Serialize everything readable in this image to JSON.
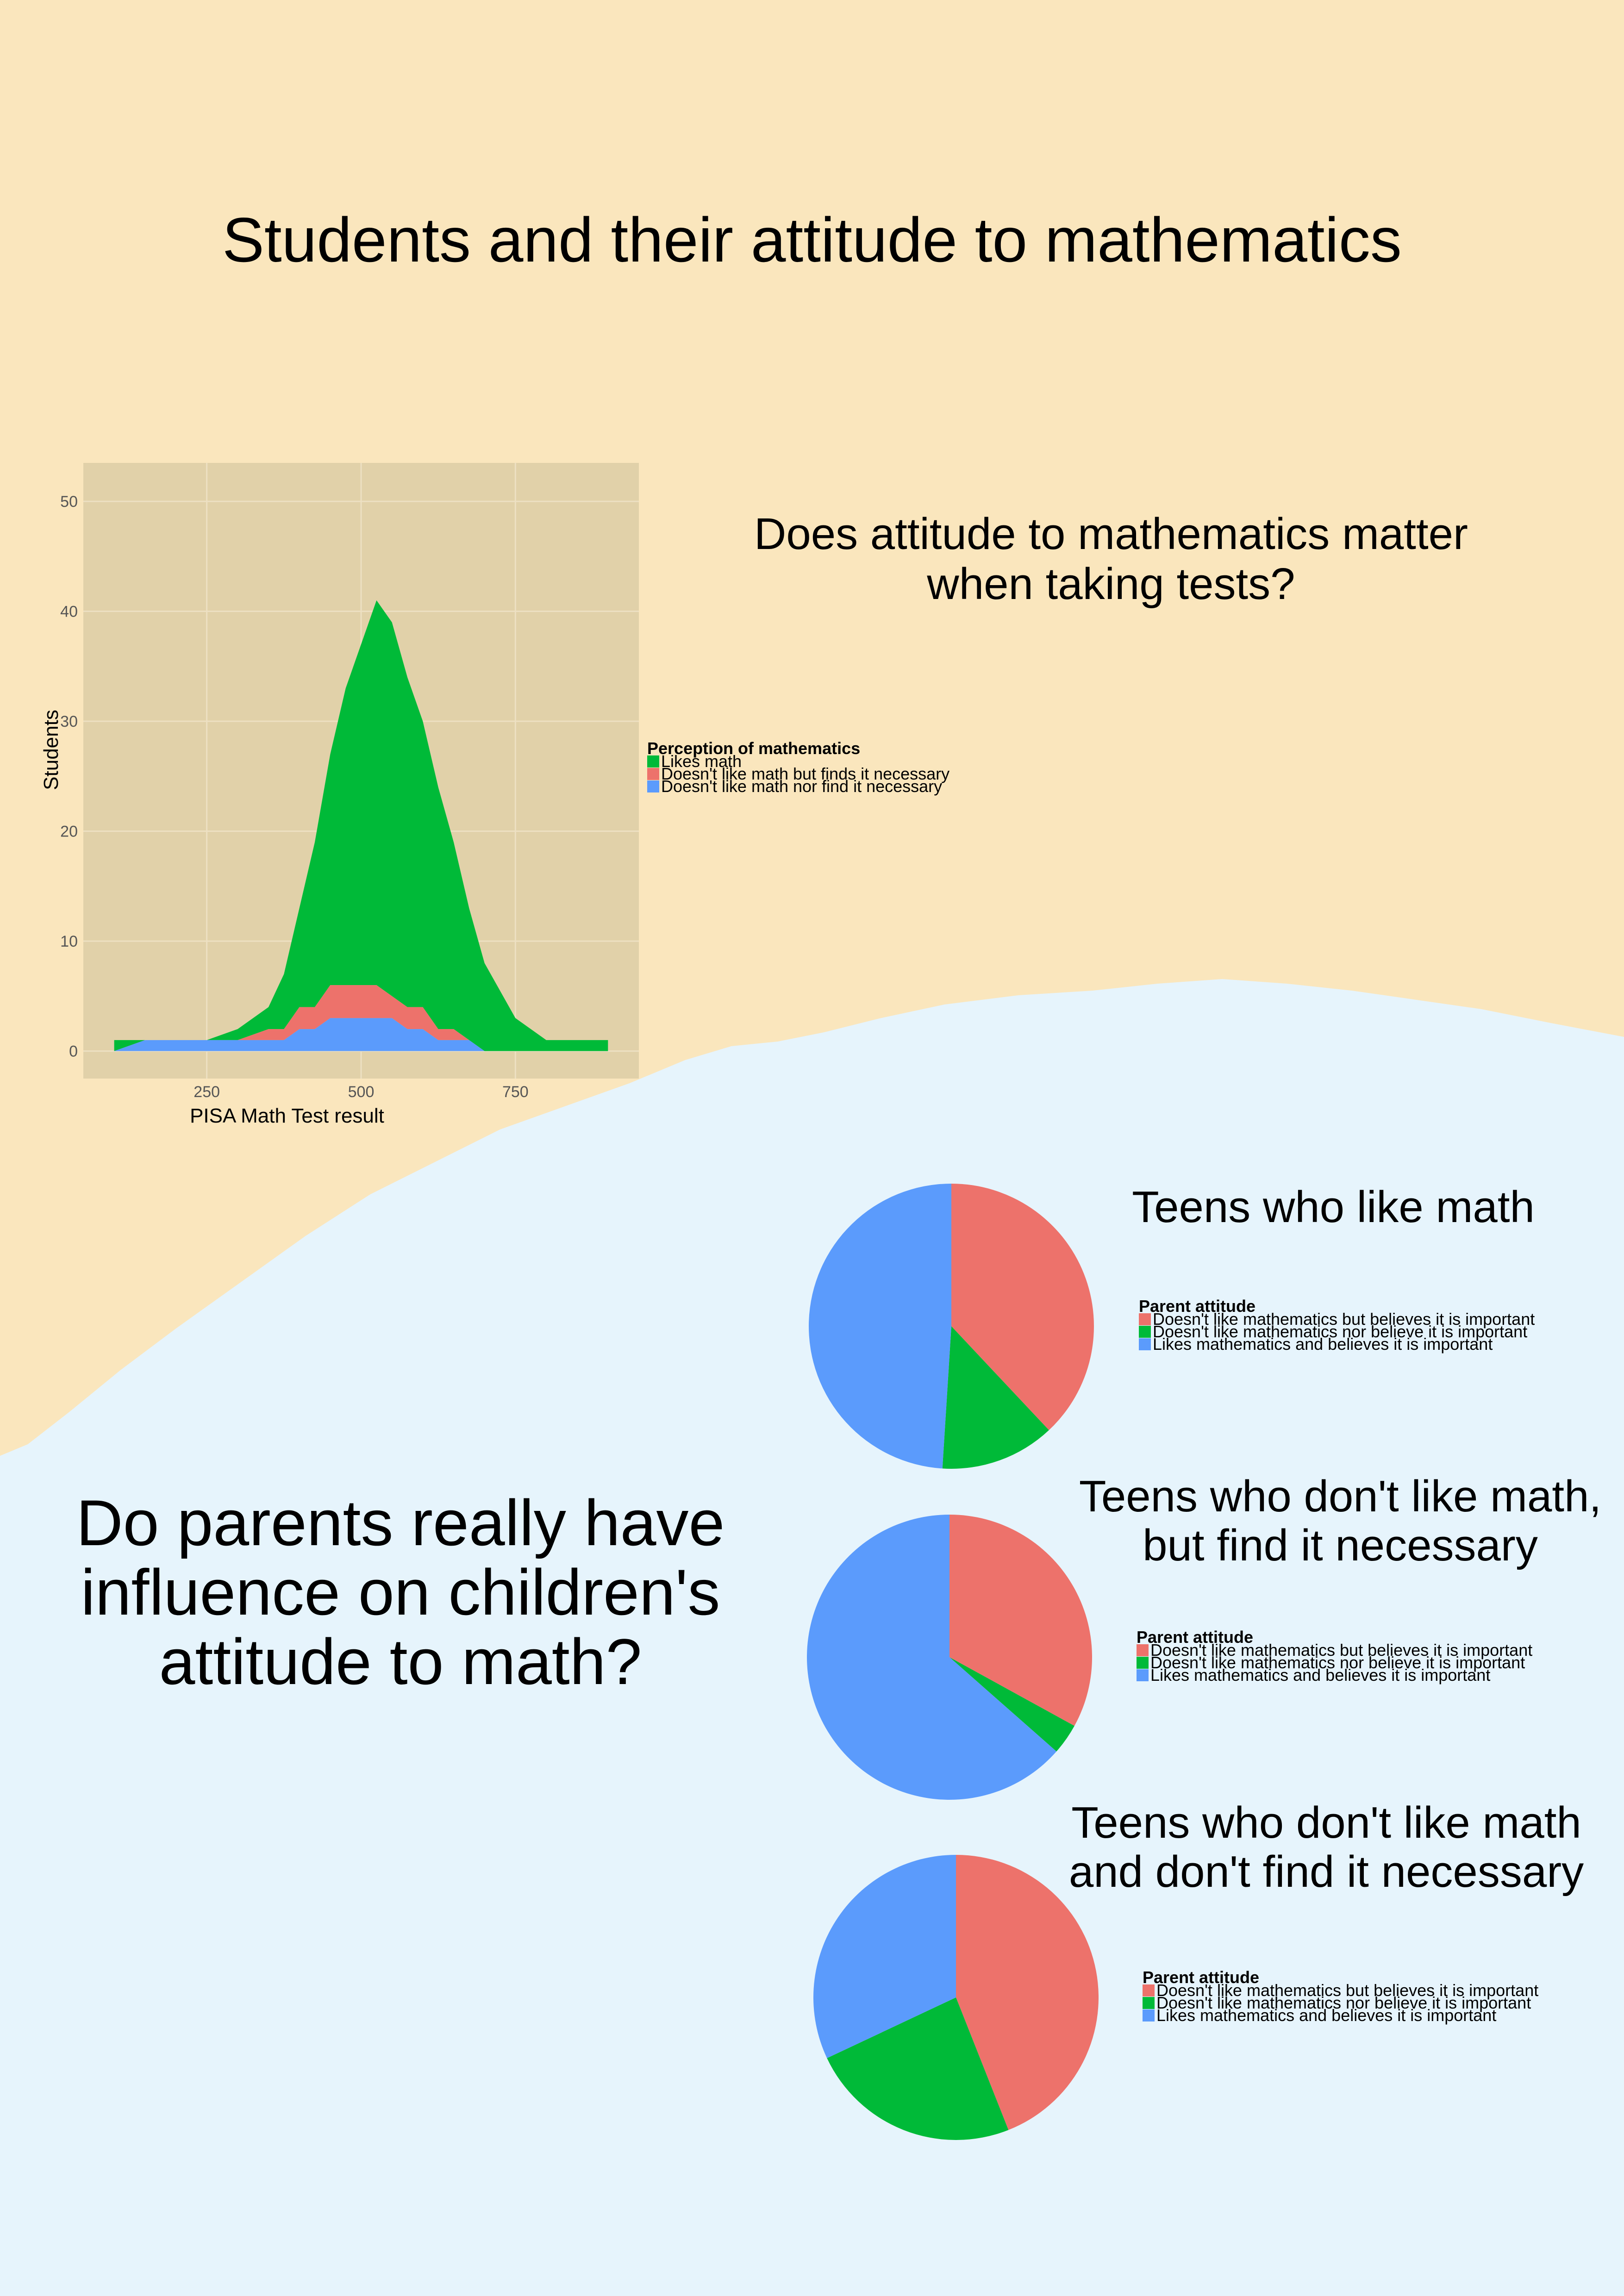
{
  "page": {
    "title": "Students and their attitude to mathematics",
    "question_tests": "Does attitude to mathematics matter\nwhen taking tests?",
    "question_parents": "Do parents really have\ninfluence on children's\nattitude to math?"
  },
  "colors": {
    "background_top": "#fae6bd",
    "background_bottom": "#e6f4fc",
    "panel": "#e1d1a9",
    "red": "#ed726b",
    "green": "#00ba38",
    "blue": "#5b9bfc"
  },
  "chart_data": [
    {
      "type": "area",
      "stacked": true,
      "title": "",
      "xlabel": "PISA Math Test result",
      "ylabel": "Students",
      "xlim": [
        50,
        950
      ],
      "ylim": [
        -2.5,
        53.5
      ],
      "x_ticks": [
        250,
        500,
        750
      ],
      "y_ticks": [
        0,
        10,
        20,
        30,
        40,
        50
      ],
      "grid": true,
      "legend_title": "Perception of mathematics",
      "legend_position": "right",
      "x": [
        100,
        150,
        200,
        250,
        300,
        350,
        375,
        400,
        425,
        450,
        475,
        500,
        525,
        550,
        575,
        600,
        625,
        650,
        675,
        700,
        750,
        800,
        850,
        900
      ],
      "series": [
        {
          "name": "Likes math",
          "color": "#00ba38",
          "values": [
            1,
            0,
            0,
            0,
            1,
            2,
            5,
            9,
            15,
            21,
            27,
            31,
            35,
            34,
            30,
            26,
            22,
            17,
            12,
            8,
            3,
            1,
            1,
            1
          ]
        },
        {
          "name": "Doesn't like math but finds it necessary",
          "color": "#ed726b",
          "values": [
            0,
            0,
            0,
            0,
            0,
            1,
            1,
            2,
            2,
            3,
            3,
            3,
            3,
            2,
            2,
            2,
            1,
            1,
            0,
            0,
            0,
            0,
            0,
            0
          ]
        },
        {
          "name": "Doesn't like math nor find it necessary",
          "color": "#5b9bfc",
          "values": [
            0,
            1,
            1,
            1,
            1,
            1,
            1,
            2,
            2,
            3,
            3,
            3,
            3,
            3,
            2,
            2,
            1,
            1,
            1,
            0,
            0,
            0,
            0,
            0
          ]
        }
      ]
    },
    {
      "type": "pie",
      "title": "Teens who like math",
      "legend_title": "Parent attitude",
      "legend_position": "right",
      "slices": [
        {
          "label": "Doesn't like mathematics but believes it is important",
          "value": 38,
          "color": "#ed726b"
        },
        {
          "label": "Doesn't like mathematics nor believe it is important",
          "value": 13,
          "color": "#00ba38"
        },
        {
          "label": "Likes mathematics and believes it is important",
          "value": 49,
          "color": "#5b9bfc"
        }
      ]
    },
    {
      "type": "pie",
      "title": "Teens who don't like math,\nbut find it necessary",
      "legend_title": "Parent attitude",
      "legend_position": "right",
      "slices": [
        {
          "label": "Doesn't like mathematics but believes it is important",
          "value": 33,
          "color": "#ed726b"
        },
        {
          "label": "Doesn't like mathematics nor believe it is important",
          "value": 3.5,
          "color": "#00ba38"
        },
        {
          "label": "Likes mathematics and believes it is important",
          "value": 63.5,
          "color": "#5b9bfc"
        }
      ]
    },
    {
      "type": "pie",
      "title": "Teens who don't like math\nand don't find it necessary",
      "legend_title": "Parent attitude",
      "legend_position": "right",
      "slices": [
        {
          "label": "Doesn't like mathematics but believes it is important",
          "value": 44,
          "color": "#ed726b"
        },
        {
          "label": "Doesn't like mathematics nor believe it is important",
          "value": 24,
          "color": "#00ba38"
        },
        {
          "label": "Likes mathematics and believes it is important",
          "value": 32,
          "color": "#5b9bfc"
        }
      ]
    }
  ]
}
